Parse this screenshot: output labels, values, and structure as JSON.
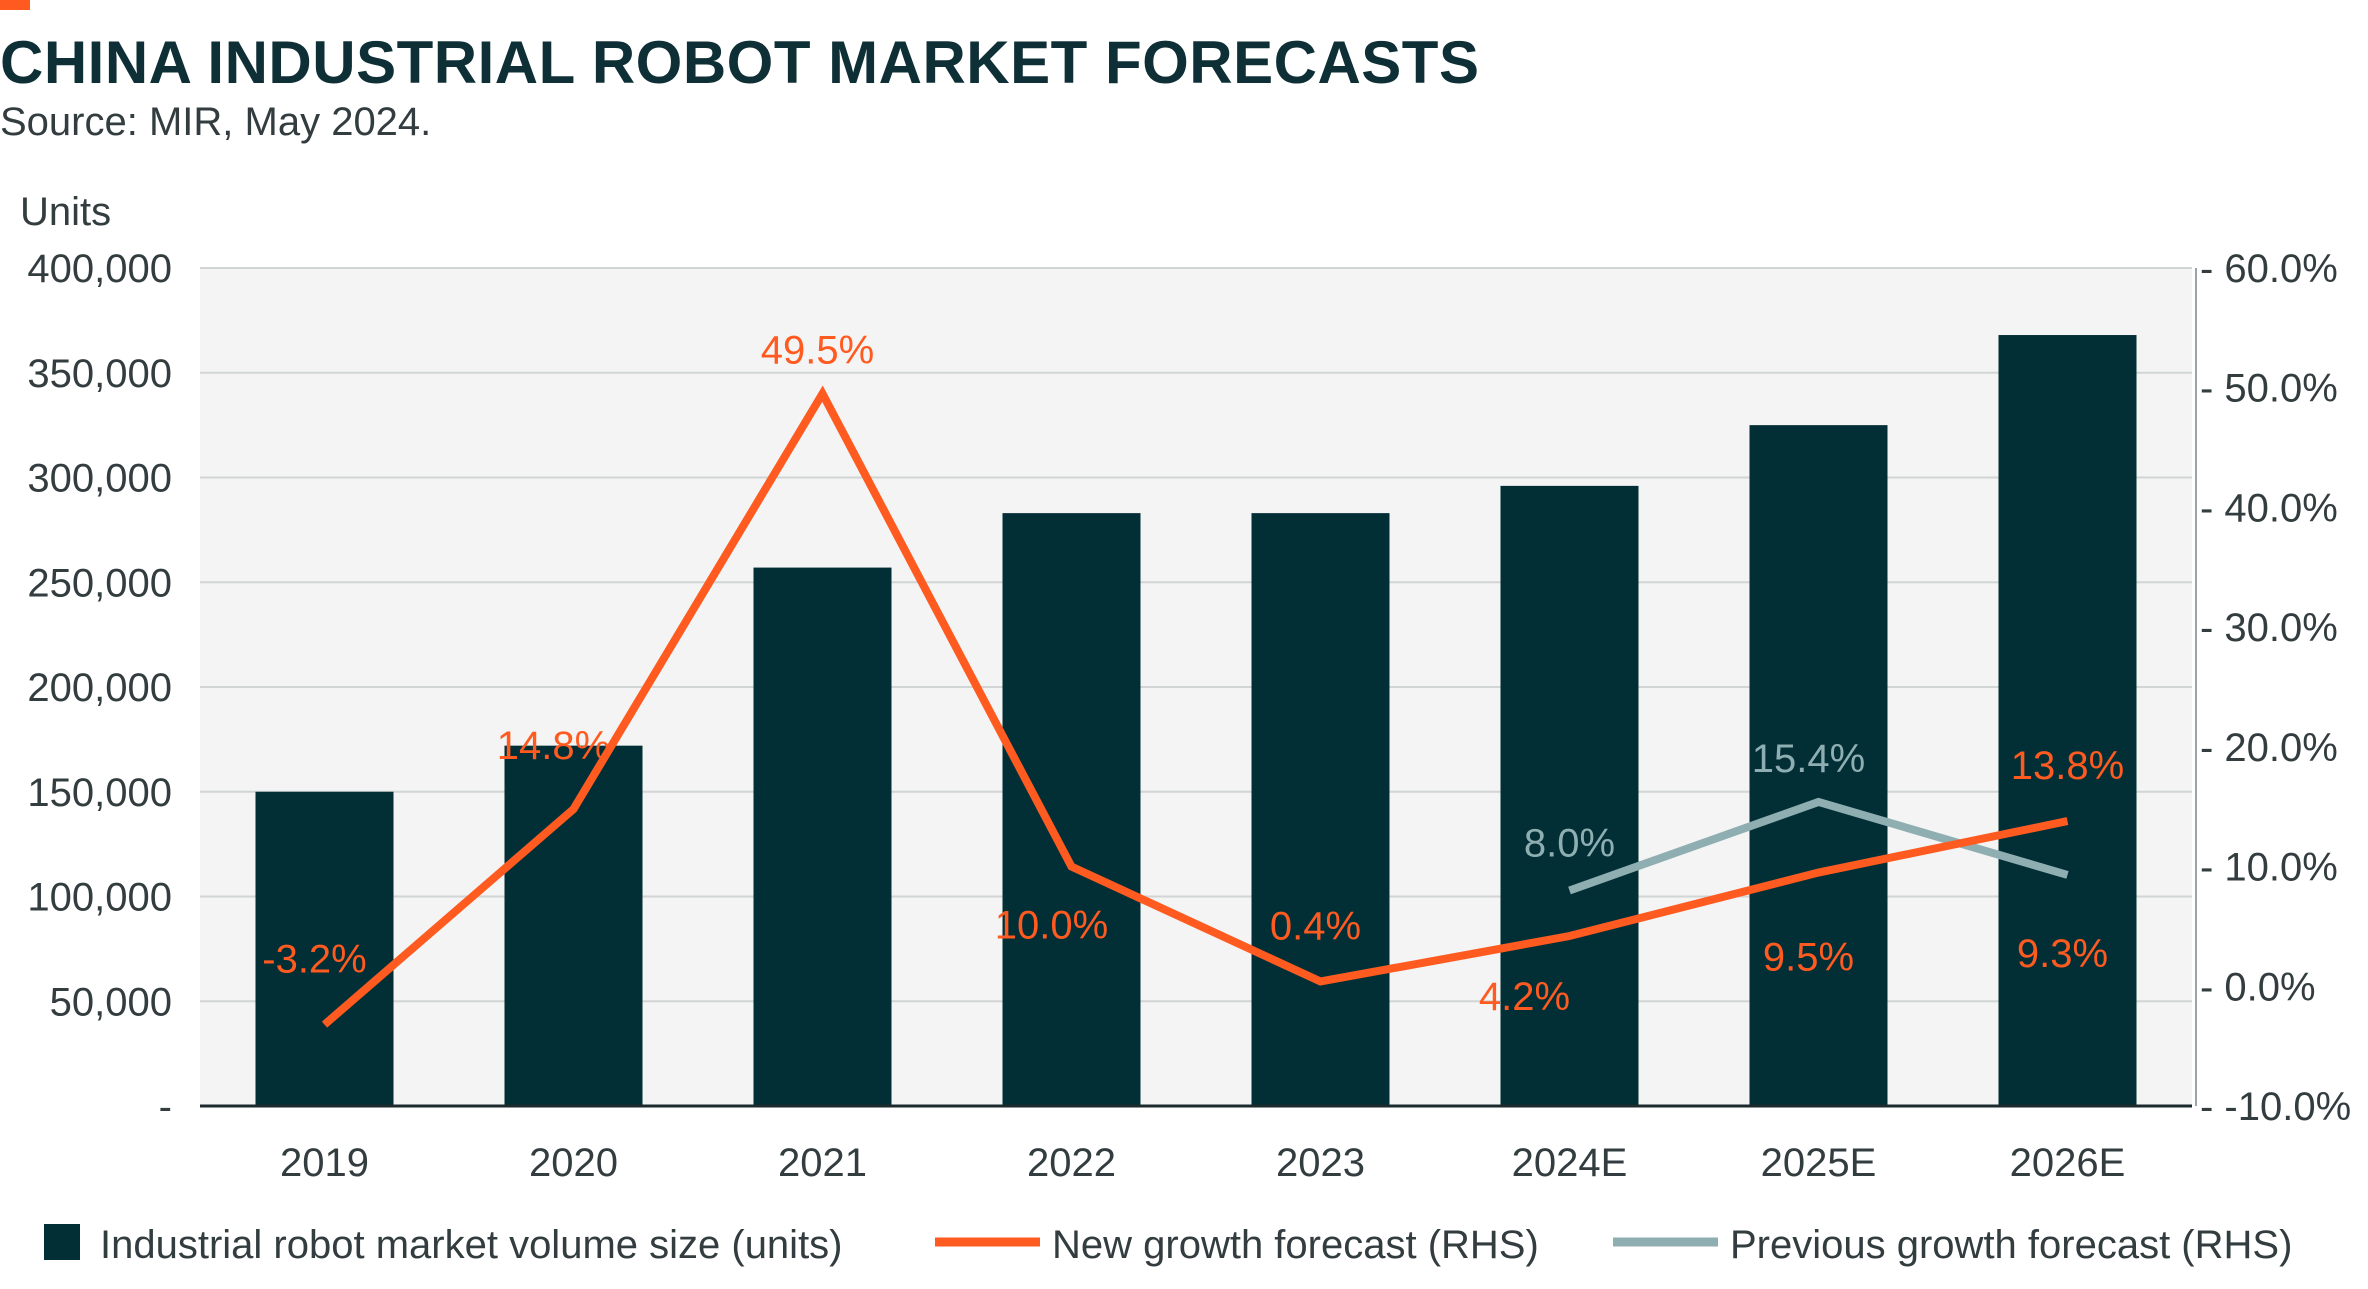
{
  "header": {
    "title": "CHINA INDUSTRIAL ROBOT MARKET FORECASTS",
    "subtitle": "Source: MIR, May 2024."
  },
  "chart_data": {
    "type": "bar",
    "categories": [
      "2019",
      "2020",
      "2021",
      "2022",
      "2023",
      "2024E",
      "2025E",
      "2026E"
    ],
    "ylabel": "Units",
    "ylim": [
      0,
      400000
    ],
    "y_ticks": [
      "-",
      "50,000",
      "100,000",
      "150,000",
      "200,000",
      "250,000",
      "300,000",
      "350,000",
      "400,000"
    ],
    "y2lim": [
      -10,
      60
    ],
    "y2_ticks": [
      "-10.0%",
      "0.0%",
      "10.0%",
      "20.0%",
      "30.0%",
      "40.0%",
      "50.0%",
      "60.0%"
    ],
    "grid": true,
    "legend_position": "bottom",
    "series": [
      {
        "name": "Industrial robot market volume size (units)",
        "kind": "bar",
        "axis": "left",
        "color": "#022f36",
        "values": [
          150000,
          172000,
          257000,
          283000,
          283000,
          296000,
          325000,
          368000
        ]
      },
      {
        "name": "New growth forecast (RHS)",
        "kind": "line",
        "axis": "right",
        "color": "#ff5a1f",
        "values": [
          -3.2,
          14.8,
          49.5,
          10.0,
          0.4,
          4.2,
          9.5,
          13.8
        ],
        "labels": [
          "-3.2%",
          "14.8%",
          "49.5%",
          "10.0%",
          "0.4%",
          "4.2%",
          "9.5%",
          "13.8%"
        ]
      },
      {
        "name": "Previous growth forecast (RHS)",
        "kind": "line",
        "axis": "right",
        "color": "#8faeb2",
        "values": [
          null,
          null,
          null,
          null,
          null,
          8.0,
          15.4,
          9.3
        ],
        "labels": [
          null,
          null,
          null,
          null,
          null,
          "8.0%",
          "15.4%",
          "9.3%"
        ]
      }
    ]
  }
}
